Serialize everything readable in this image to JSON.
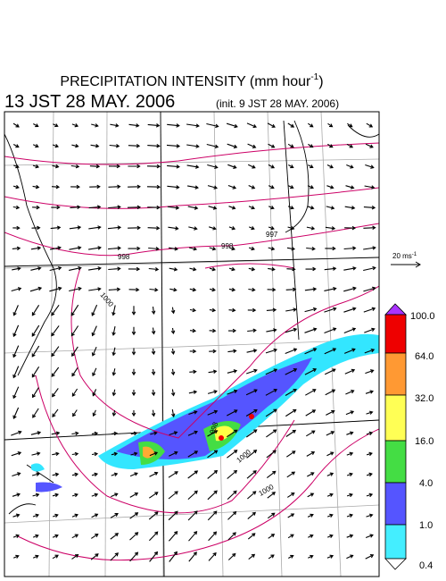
{
  "header": {
    "title": "PRECIPITATION INTENSITY (mm hour",
    "title_sup": "-1",
    "title_end": ")",
    "valid_time": "13 JST 28 MAY. 2006",
    "init_time": "(init. 9 JST 28 MAY. 2006)"
  },
  "vector_scale": {
    "label": "20 ms",
    "label_sup": "-1"
  },
  "colorbar": {
    "labels": [
      "100.0",
      "64.0",
      "32.0",
      "16.0",
      "4.0",
      "1.0",
      "0.4"
    ]
  },
  "isobar_labels": [
    "998",
    "998",
    "997",
    "1000",
    "998",
    "1000",
    "1000"
  ]
}
